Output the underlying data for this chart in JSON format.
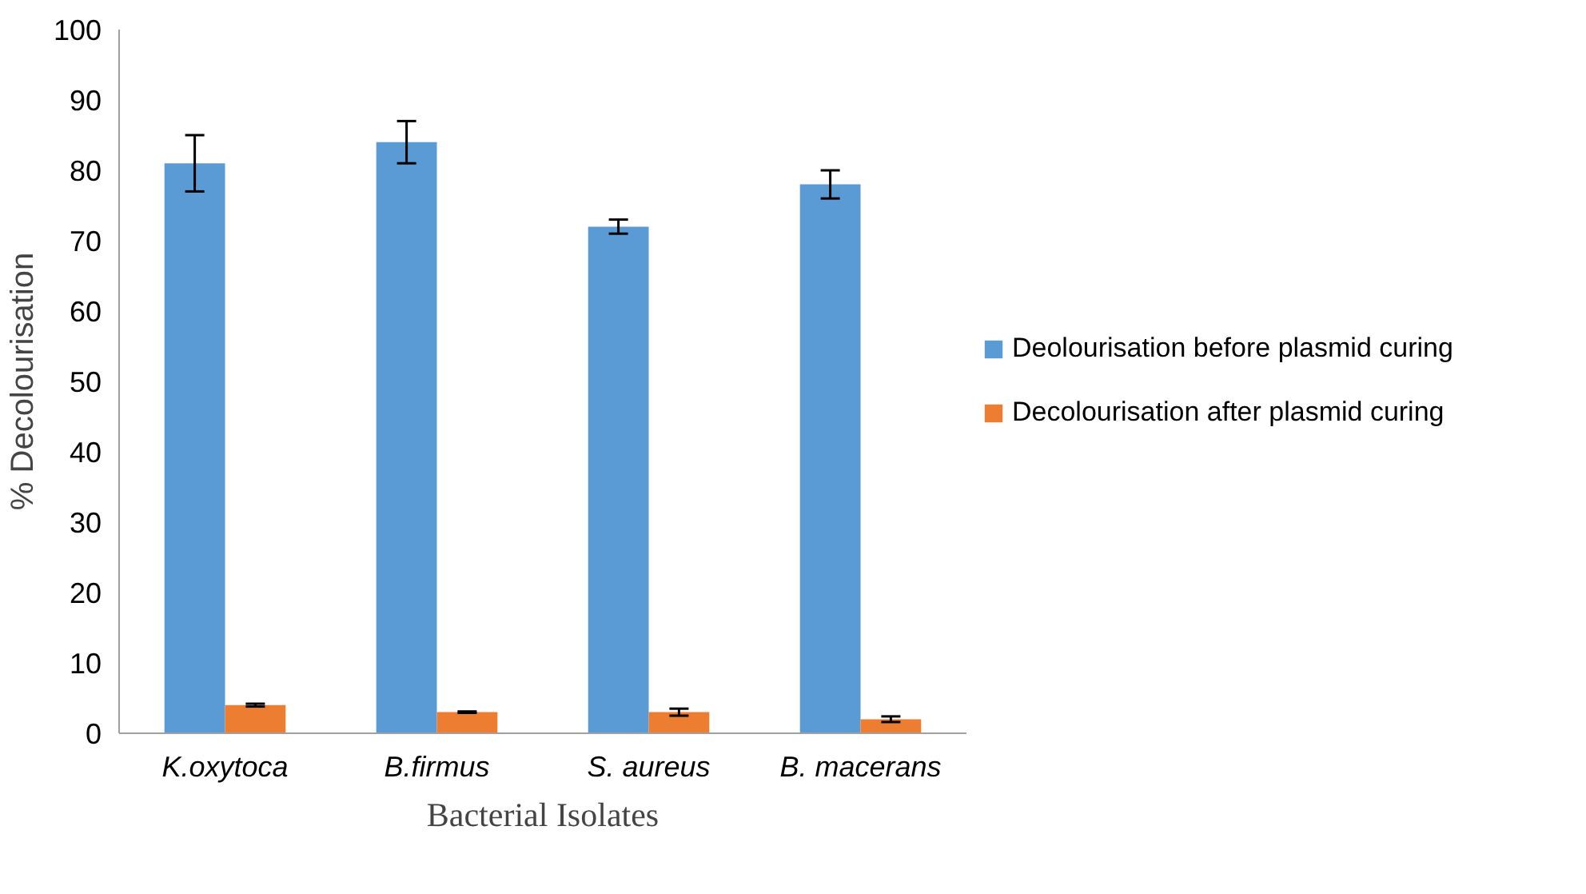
{
  "chart_data": {
    "type": "bar",
    "xlabel": "Bacterial Isolates",
    "ylabel": "% Decolourisation",
    "categories": [
      "K.oxytoca",
      "B.firmus",
      "S. aureus",
      "B. macerans"
    ],
    "series": [
      {
        "name": "Deolourisation before plasmid curing",
        "color": "#5b9bd5",
        "values": [
          81,
          84,
          72,
          78
        ],
        "errors": [
          4,
          3,
          1,
          2
        ]
      },
      {
        "name": "Decolourisation after plasmid curing",
        "color": "#ed7d31",
        "values": [
          4,
          3,
          3,
          2
        ],
        "errors": [
          0.2,
          0.1,
          0.5,
          0.4
        ]
      }
    ],
    "ylim": [
      0,
      100
    ],
    "yticks": [
      0,
      10,
      20,
      30,
      40,
      50,
      60,
      70,
      80,
      90,
      100
    ],
    "grid": false,
    "legend": "right"
  }
}
